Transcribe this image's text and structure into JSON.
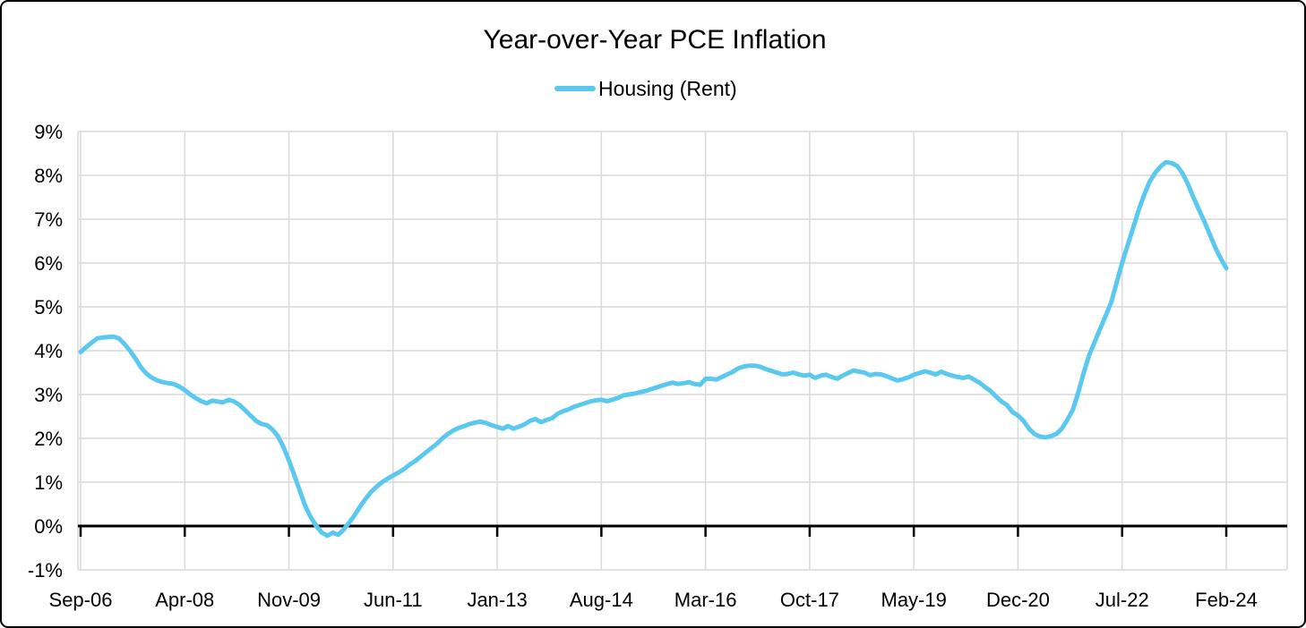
{
  "colors": {
    "line": "#5BC8EF",
    "grid": "#D9D9D9",
    "axis": "#000000",
    "text": "#000000",
    "background": "#FFFFFF",
    "border": "#000000"
  },
  "chart_data": {
    "type": "line",
    "title": "Year-over-Year PCE Inflation",
    "xlabel": "",
    "ylabel": "",
    "x_start": "Sep-2006",
    "x_end": "Feb-2024",
    "frequency": "monthly",
    "grid": true,
    "legend_position": "top-center",
    "ylim": [
      -1,
      9
    ],
    "y_tick_labels": [
      "9%",
      "8%",
      "7%",
      "6%",
      "5%",
      "4%",
      "3%",
      "2%",
      "1%",
      "0%",
      "-1%"
    ],
    "y_tick_values": [
      9,
      8,
      7,
      6,
      5,
      4,
      3,
      2,
      1,
      0,
      -1
    ],
    "x_tick_labels": [
      "Sep-06",
      "Apr-08",
      "Nov-09",
      "Jun-11",
      "Jan-13",
      "Aug-14",
      "Mar-16",
      "Oct-17",
      "May-19",
      "Dec-20",
      "Jul-22",
      "Feb-24"
    ],
    "x_tick_interval_months": 19,
    "series": [
      {
        "name": "Housing (Rent)",
        "color": "#5BC8EF",
        "values": [
          3.97,
          4.08,
          4.18,
          4.28,
          4.3,
          4.31,
          4.32,
          4.28,
          4.15,
          4.0,
          3.82,
          3.62,
          3.48,
          3.38,
          3.32,
          3.28,
          3.26,
          3.24,
          3.18,
          3.1,
          3.0,
          2.92,
          2.85,
          2.8,
          2.86,
          2.84,
          2.82,
          2.88,
          2.84,
          2.76,
          2.64,
          2.52,
          2.4,
          2.33,
          2.3,
          2.2,
          2.05,
          1.8,
          1.5,
          1.15,
          0.8,
          0.45,
          0.2,
          0.0,
          -0.15,
          -0.22,
          -0.15,
          -0.2,
          -0.08,
          0.08,
          0.25,
          0.45,
          0.62,
          0.78,
          0.9,
          1.0,
          1.08,
          1.15,
          1.22,
          1.3,
          1.4,
          1.48,
          1.58,
          1.68,
          1.78,
          1.88,
          2.0,
          2.1,
          2.18,
          2.24,
          2.28,
          2.33,
          2.36,
          2.38,
          2.35,
          2.3,
          2.26,
          2.22,
          2.28,
          2.22,
          2.27,
          2.32,
          2.4,
          2.44,
          2.37,
          2.42,
          2.46,
          2.56,
          2.62,
          2.66,
          2.72,
          2.76,
          2.8,
          2.84,
          2.87,
          2.88,
          2.85,
          2.88,
          2.92,
          2.98,
          3.0,
          3.02,
          3.05,
          3.08,
          3.12,
          3.16,
          3.2,
          3.24,
          3.27,
          3.24,
          3.26,
          3.28,
          3.24,
          3.22,
          3.36,
          3.36,
          3.34,
          3.4,
          3.46,
          3.52,
          3.6,
          3.64,
          3.66,
          3.66,
          3.63,
          3.58,
          3.54,
          3.5,
          3.46,
          3.47,
          3.5,
          3.46,
          3.43,
          3.45,
          3.38,
          3.43,
          3.45,
          3.4,
          3.36,
          3.43,
          3.49,
          3.55,
          3.52,
          3.5,
          3.44,
          3.47,
          3.46,
          3.42,
          3.37,
          3.32,
          3.35,
          3.39,
          3.45,
          3.49,
          3.53,
          3.5,
          3.46,
          3.52,
          3.47,
          3.43,
          3.4,
          3.38,
          3.41,
          3.34,
          3.27,
          3.17,
          3.08,
          2.95,
          2.84,
          2.76,
          2.6,
          2.52,
          2.4,
          2.22,
          2.1,
          2.04,
          2.02,
          2.05,
          2.1,
          2.22,
          2.42,
          2.65,
          3.05,
          3.5,
          3.9,
          4.2,
          4.5,
          4.8,
          5.1,
          5.55,
          6.0,
          6.4,
          6.8,
          7.2,
          7.55,
          7.85,
          8.05,
          8.2,
          8.3,
          8.28,
          8.22,
          8.05,
          7.8,
          7.5,
          7.22,
          6.95,
          6.65,
          6.35,
          6.1,
          5.88
        ]
      }
    ]
  }
}
